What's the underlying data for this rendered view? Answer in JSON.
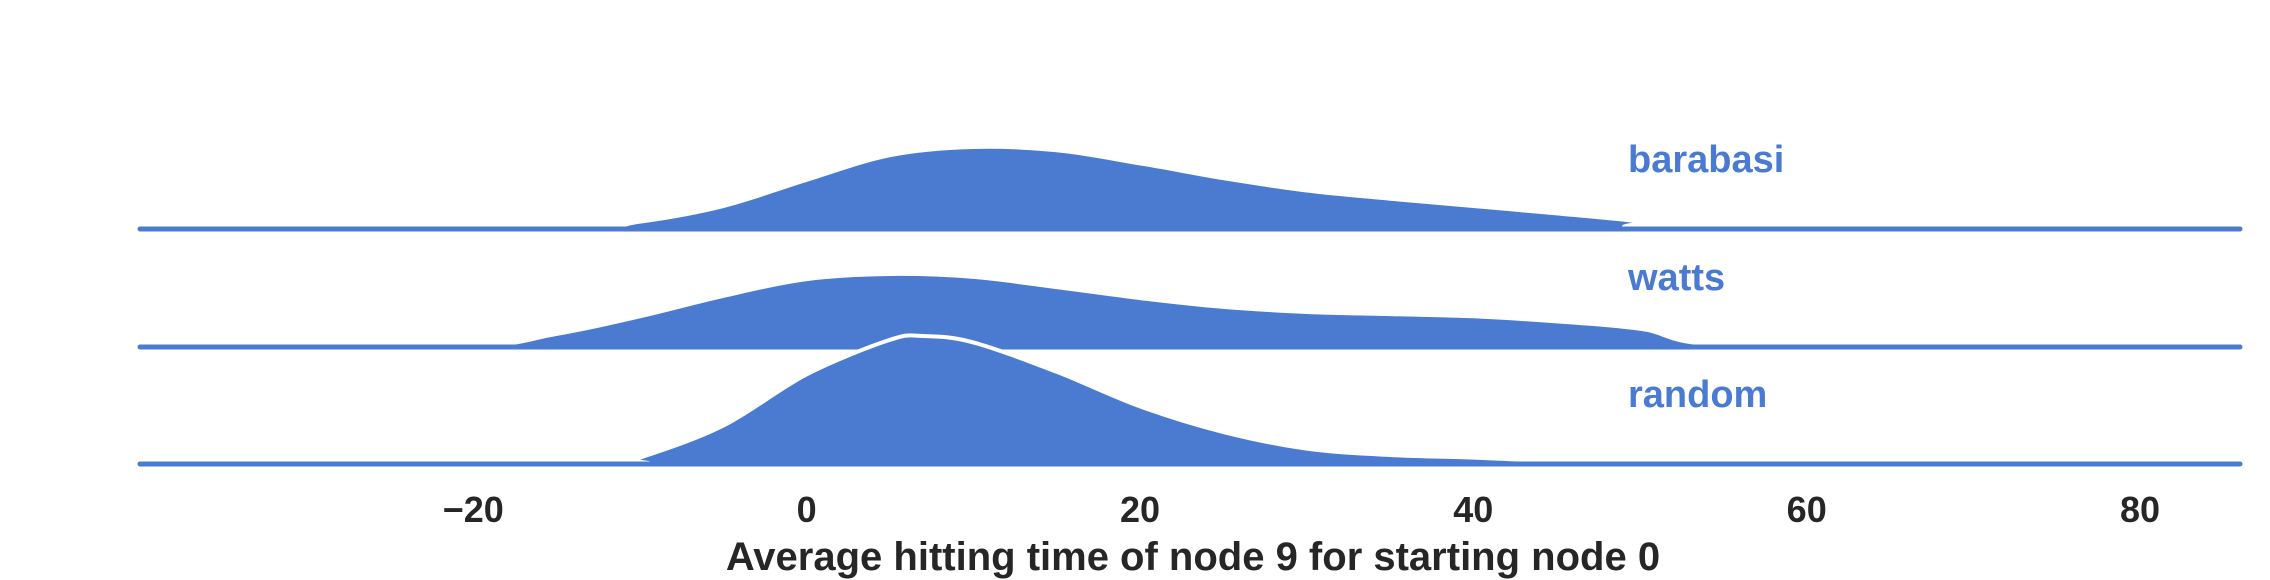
{
  "chart_data": {
    "type": "area",
    "title": "",
    "xlabel": "Average hitting time of node 9 for starting node 0",
    "ylabel": "",
    "xlim": [
      -40,
      86
    ],
    "xticks": [
      -20,
      0,
      20,
      40,
      60,
      80
    ],
    "xtick_labels": [
      "−20",
      "0",
      "20",
      "40",
      "60",
      "80"
    ],
    "grid": false,
    "fill_color": "#4a7bd1",
    "series": [
      {
        "name": "barabasi",
        "x": [
          -40,
          -15,
          -10,
          -5,
          0,
          5,
          10,
          15,
          20,
          25,
          30,
          35,
          40,
          45,
          50,
          52,
          86
        ],
        "density": [
          0,
          0,
          0.09,
          0.28,
          0.6,
          0.9,
          1.0,
          0.96,
          0.8,
          0.62,
          0.47,
          0.37,
          0.28,
          0.19,
          0.09,
          0,
          0
        ]
      },
      {
        "name": "watts",
        "x": [
          -40,
          -21,
          -15,
          -10,
          -5,
          0,
          5,
          10,
          15,
          20,
          25,
          30,
          35,
          40,
          45,
          50,
          57,
          86
        ],
        "density": [
          0,
          0,
          0.18,
          0.42,
          0.7,
          0.93,
          1.0,
          0.96,
          0.82,
          0.67,
          0.55,
          0.48,
          0.45,
          0.42,
          0.35,
          0.25,
          0,
          0
        ]
      },
      {
        "name": "random",
        "x": [
          -40,
          -12,
          -10,
          -5,
          0,
          5,
          7,
          10,
          15,
          20,
          25,
          30,
          35,
          40,
          45,
          47,
          86
        ],
        "density": [
          0,
          0,
          0.05,
          0.3,
          0.7,
          0.97,
          1.0,
          0.95,
          0.72,
          0.45,
          0.25,
          0.12,
          0.07,
          0.05,
          0.02,
          0,
          0
        ]
      }
    ]
  }
}
